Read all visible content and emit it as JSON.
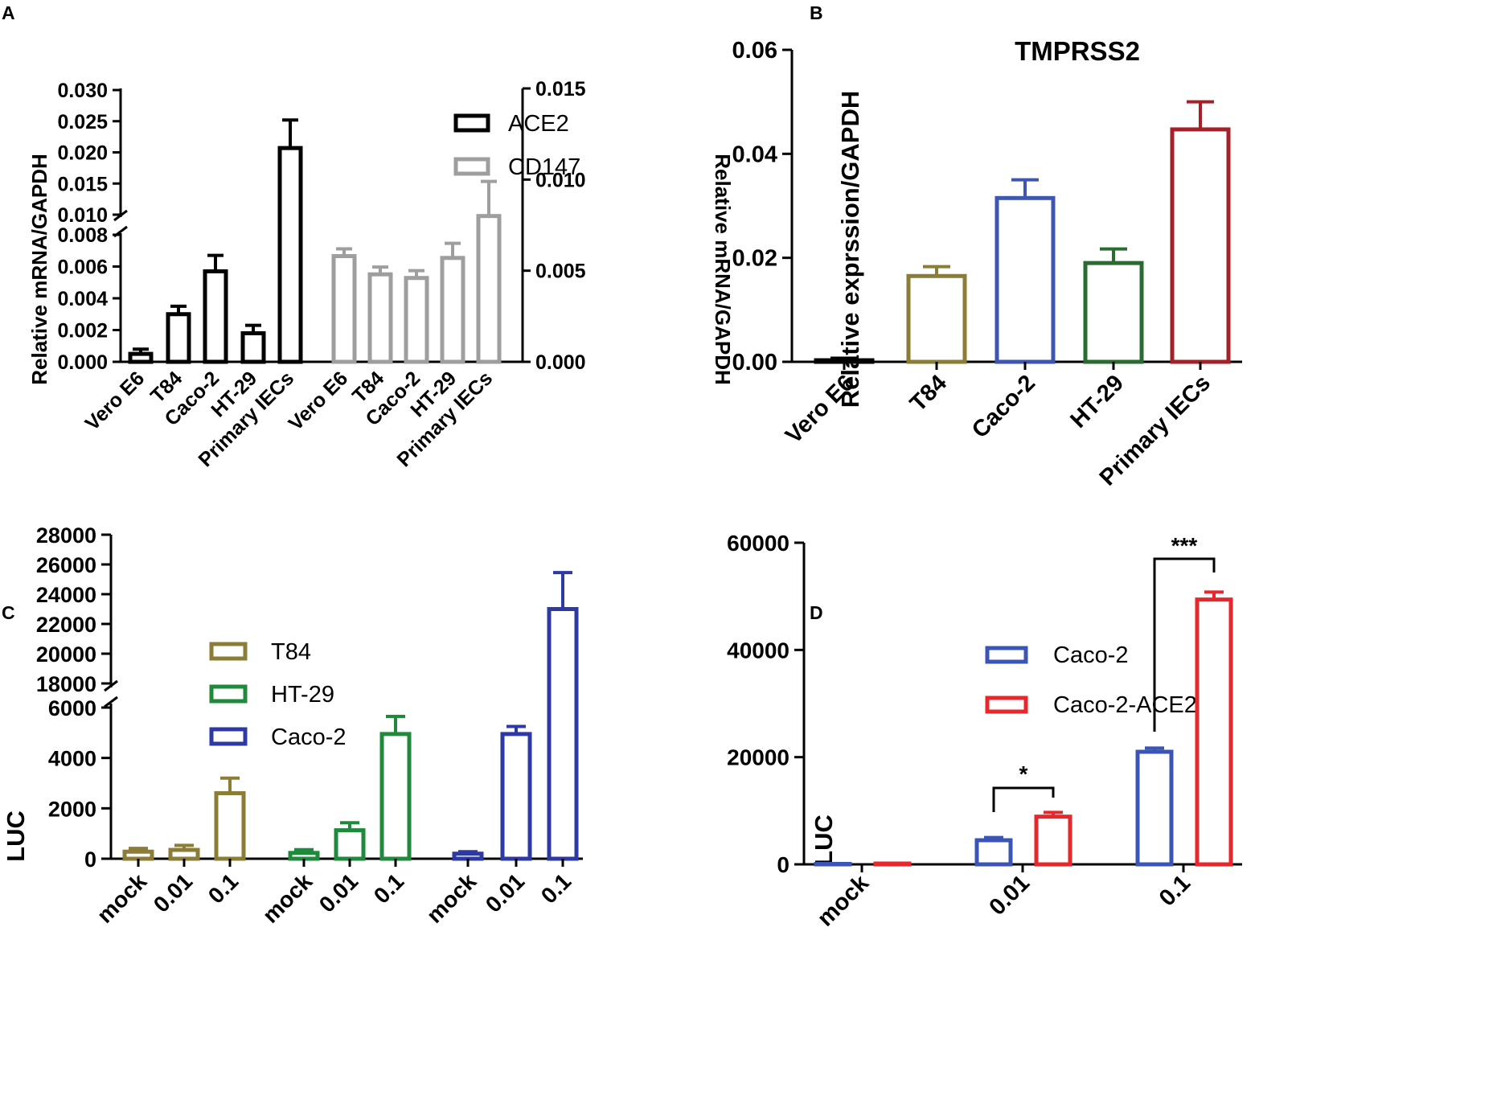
{
  "chart_data": [
    {
      "panel": "A",
      "type": "bar",
      "axis_break": true,
      "ylabel_left": "Relative mRNA/GAPDH",
      "ylabel_right": "Relative mRNA/GAPDH",
      "left_ticks": [
        "0.000",
        "0.002",
        "0.004",
        "0.006",
        "0.008",
        "0.010",
        "0.015",
        "0.020",
        "0.025",
        "0.030"
      ],
      "right_ticks": [
        "0.000",
        "0.005",
        "0.010",
        "0.015"
      ],
      "ylim_left_lower": [
        0,
        0.008
      ],
      "ylim_left_upper": [
        0.01,
        0.03
      ],
      "ylim_right": [
        0,
        0.015
      ],
      "series": [
        {
          "name": "ACE2",
          "color": "#000000",
          "axis": "left",
          "categories": [
            "Vero E6",
            "T84",
            "Caco-2",
            "HT-29",
            "Primary IECs"
          ],
          "values": [
            0.0005,
            0.003,
            0.0057,
            0.0018,
            0.0207
          ],
          "errors": [
            0.0003,
            0.0005,
            0.001,
            0.0005,
            0.0045
          ]
        },
        {
          "name": "CD147",
          "color": "#9e9e9e",
          "axis": "right",
          "categories": [
            "Vero E6",
            "T84",
            "Caco-2",
            "HT-29",
            "Primary IECs"
          ],
          "values": [
            0.0058,
            0.0048,
            0.0046,
            0.0057,
            0.008
          ],
          "errors": [
            0.0004,
            0.0004,
            0.0004,
            0.0008,
            0.0019
          ]
        }
      ]
    },
    {
      "panel": "B",
      "type": "bar",
      "title": "TMPRSS2",
      "ylabel": "Relative exprssion/GAPDH",
      "ticks": [
        "0.00",
        "0.02",
        "0.04",
        "0.06"
      ],
      "ylim": [
        0,
        0.06
      ],
      "categories": [
        "Vero E6",
        "T84",
        "Caco-2",
        "HT-29",
        "Primary IECs"
      ],
      "values": [
        0.0003,
        0.0165,
        0.0315,
        0.019,
        0.0447
      ],
      "errors": [
        0.0004,
        0.0018,
        0.0035,
        0.0027,
        0.0053
      ],
      "colors": [
        "#000000",
        "#8b7d36",
        "#3f56b0",
        "#2a6b32",
        "#a3222a"
      ]
    },
    {
      "panel": "C",
      "type": "bar",
      "axis_break": true,
      "ylabel": "LUC",
      "ticks": [
        "0",
        "2000",
        "4000",
        "6000",
        "18000",
        "20000",
        "22000",
        "24000",
        "26000",
        "28000"
      ],
      "ylim_lower": [
        0,
        6000
      ],
      "ylim_upper": [
        18000,
        28000
      ],
      "categories": [
        "mock",
        "0.01",
        "0.1"
      ],
      "series": [
        {
          "name": "T84",
          "color": "#8b7d36",
          "values": [
            280,
            350,
            2600
          ],
          "errors": [
            130,
            180,
            600
          ]
        },
        {
          "name": "HT-29",
          "color": "#1f8a3c",
          "values": [
            230,
            1130,
            4950
          ],
          "errors": [
            130,
            300,
            700
          ]
        },
        {
          "name": "Caco-2",
          "color": "#2e3aa3",
          "values": [
            200,
            4950,
            23000
          ],
          "errors": [
            80,
            300,
            2450
          ]
        }
      ]
    },
    {
      "panel": "D",
      "type": "bar",
      "ylabel": "LUC",
      "ticks": [
        "0",
        "20000",
        "40000",
        "60000"
      ],
      "ylim": [
        0,
        60000
      ],
      "categories": [
        "mock",
        "0.01",
        "0.1"
      ],
      "series": [
        {
          "name": "Caco-2",
          "color": "#3a55b4",
          "values": [
            80,
            4500,
            21000
          ],
          "errors": [
            60,
            500,
            700
          ]
        },
        {
          "name": "Caco-2-ACE2",
          "color": "#e8272d",
          "values": [
            150,
            8900,
            49400
          ],
          "errors": [
            80,
            800,
            1400
          ]
        }
      ],
      "significance": [
        "*",
        "***"
      ]
    }
  ],
  "panel_letters": [
    "A",
    "B",
    "C",
    "D"
  ]
}
